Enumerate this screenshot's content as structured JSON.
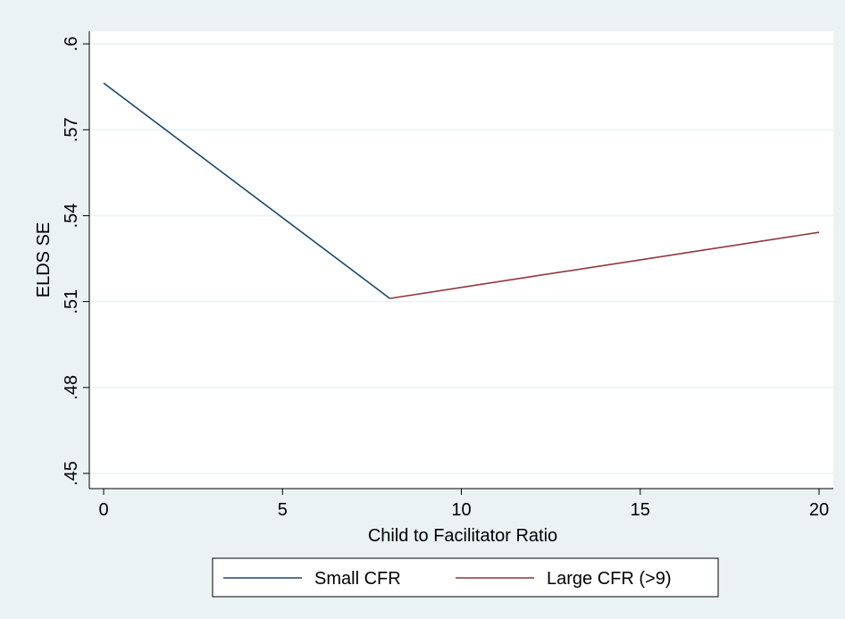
{
  "chart_data": {
    "type": "line",
    "xlabel": "Child to Facilitator Ratio",
    "ylabel": "ELDS SE",
    "series": [
      {
        "name": "Small CFR",
        "color": "#1a476f",
        "x": [
          0,
          8
        ],
        "values": [
          0.5863,
          0.5111
        ]
      },
      {
        "name": "Large CFR (>9)",
        "color": "#90353b",
        "x": [
          8,
          20
        ],
        "values": [
          0.5111,
          0.5342
        ]
      }
    ],
    "xlim": [
      -0.4,
      20.4
    ],
    "xticks": [
      0,
      5,
      10,
      15,
      20
    ],
    "ylim": [
      0.4447,
      0.6044
    ],
    "yticks": [
      {
        "value": 0.45,
        "label": ".45"
      },
      {
        "value": 0.48,
        "label": ".48"
      },
      {
        "value": 0.51,
        "label": ".51"
      },
      {
        "value": 0.54,
        "label": ".54"
      },
      {
        "value": 0.57,
        "label": ".57"
      },
      {
        "value": 0.6,
        "label": ".6"
      }
    ],
    "grid": true,
    "legend": "bottom"
  }
}
